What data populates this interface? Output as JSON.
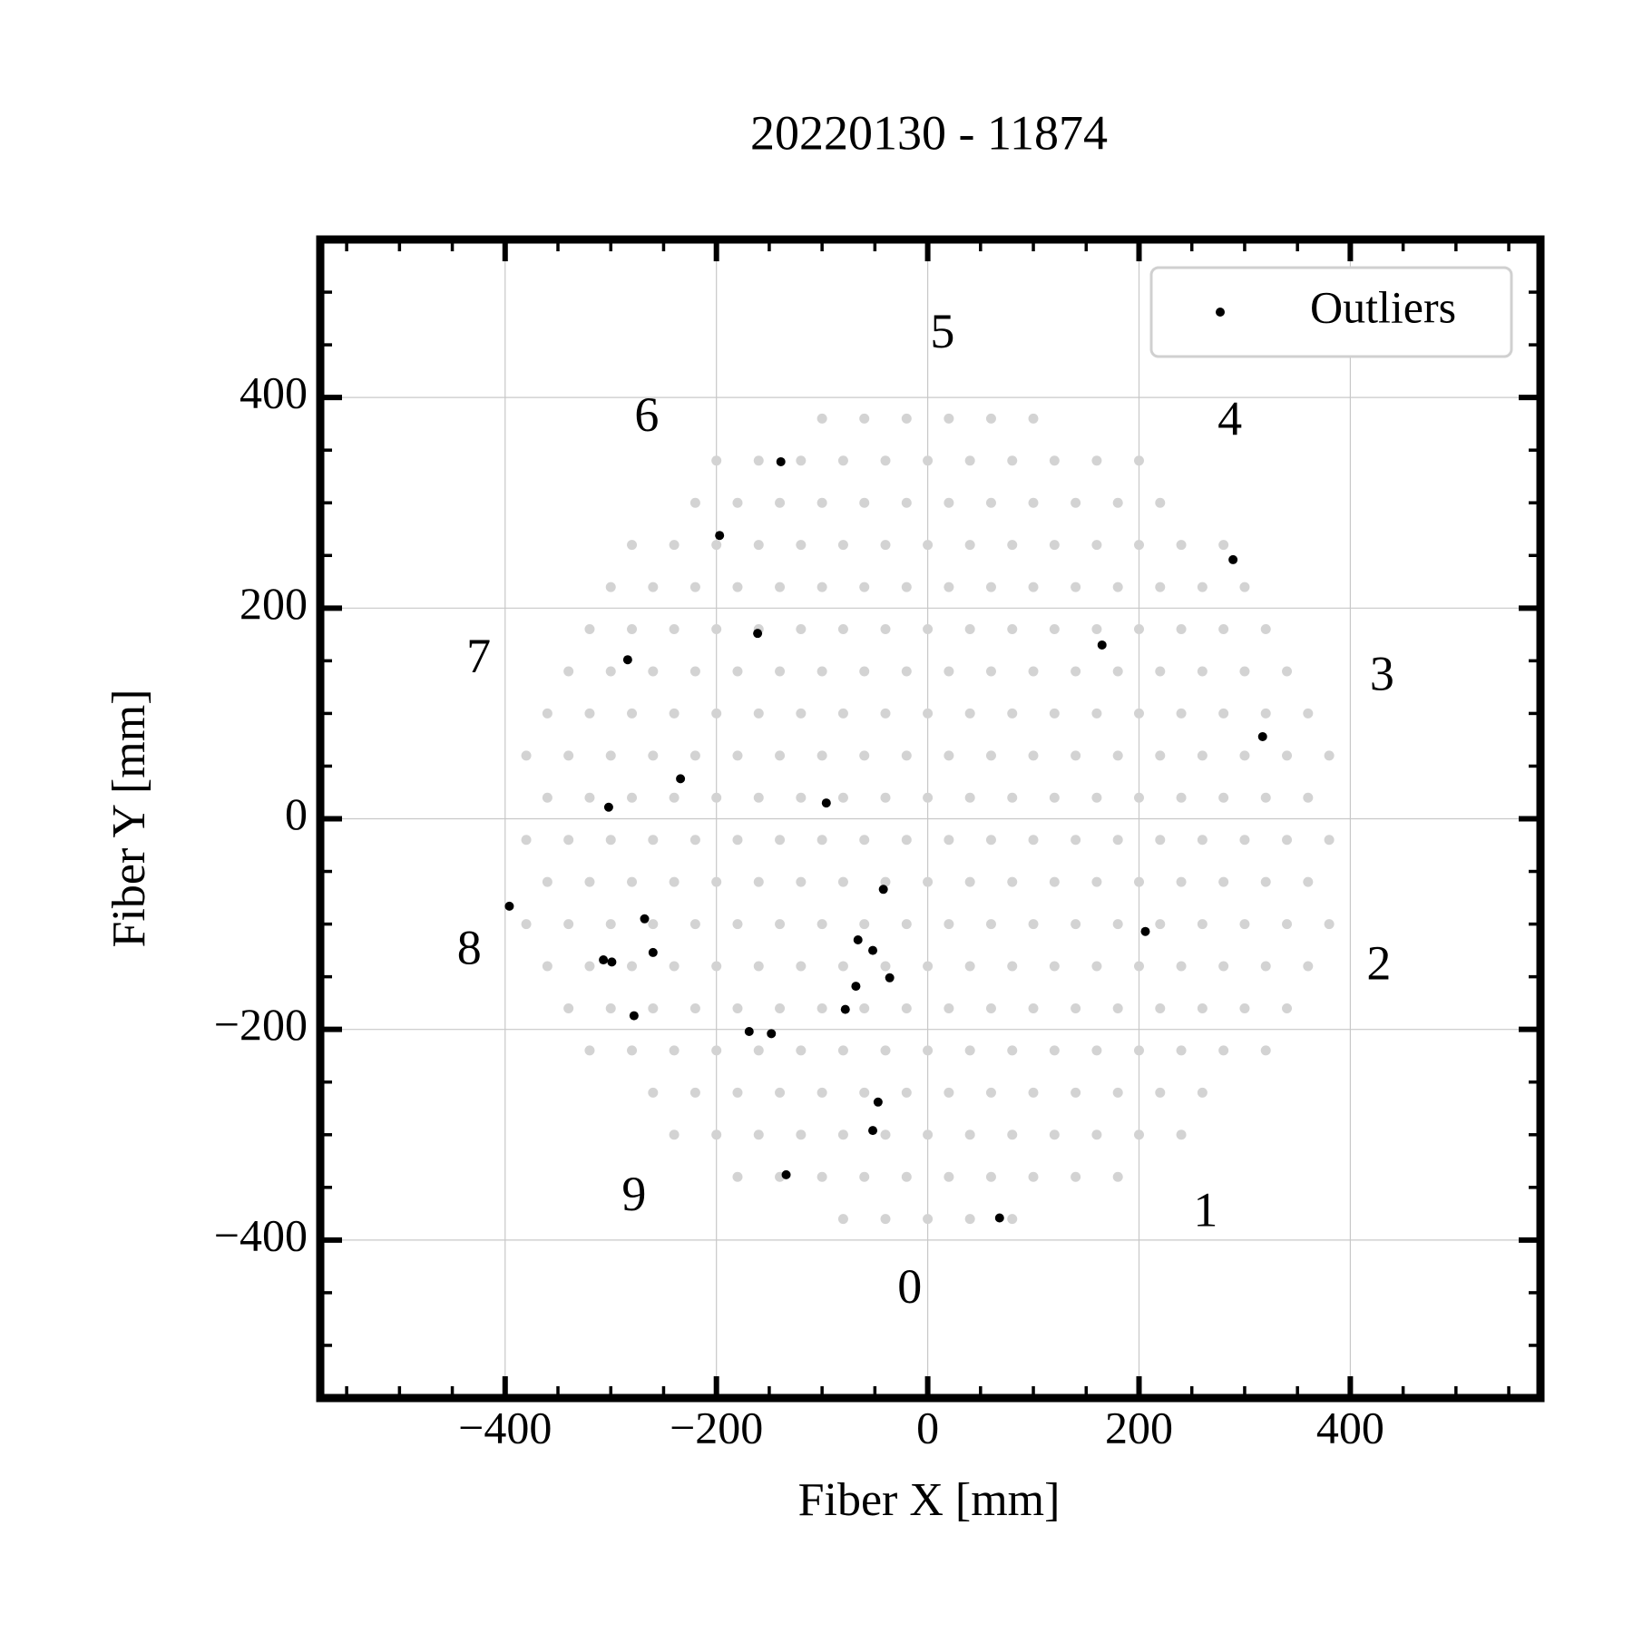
{
  "chart_data": {
    "type": "scatter",
    "title": "20220130 - 11874",
    "x_label": "Fiber X [mm]",
    "y_label": "Fiber Y [mm]",
    "xlim": [
      -575,
      580
    ],
    "ylim": [
      -550,
      550
    ],
    "xticks": [
      {
        "value": -400,
        "label": "−400"
      },
      {
        "value": -200,
        "label": "−200"
      },
      0,
      200,
      400
    ],
    "yticks": [
      {
        "value": -400,
        "label": "−400"
      },
      {
        "value": -200,
        "label": "−200"
      },
      0,
      200,
      400
    ],
    "xminorticks": [
      -550,
      -500,
      -450,
      -350,
      -300,
      -250,
      -150,
      -100,
      -50,
      50,
      100,
      150,
      250,
      300,
      350,
      450,
      500,
      550
    ],
    "yminorticks": [
      -500,
      -450,
      -350,
      -300,
      -250,
      -150,
      -100,
      -50,
      50,
      100,
      150,
      250,
      300,
      350,
      450,
      500
    ],
    "grid": true,
    "legend": "upper right",
    "series": [
      {
        "color": "#d3d3d3",
        "x": [
          -80,
          -40,
          0,
          40,
          80,
          -180,
          -140,
          -100,
          -60,
          -20,
          20,
          60,
          100,
          140,
          180,
          -240,
          -200,
          -160,
          -120,
          -80,
          -40,
          0,
          40,
          80,
          120,
          160,
          200,
          240,
          -260,
          -220,
          -180,
          -140,
          -100,
          -60,
          -20,
          20,
          60,
          100,
          140,
          180,
          220,
          260,
          -320,
          -280,
          -240,
          -200,
          -160,
          -120,
          -80,
          -40,
          0,
          40,
          80,
          120,
          160,
          200,
          240,
          280,
          320,
          -340,
          -300,
          -260,
          -220,
          -180,
          -140,
          -100,
          -60,
          -20,
          20,
          60,
          100,
          140,
          180,
          220,
          260,
          300,
          340,
          -360,
          -320,
          -280,
          -240,
          -200,
          -160,
          -120,
          -80,
          -40,
          0,
          40,
          80,
          120,
          160,
          200,
          240,
          280,
          320,
          360,
          -380,
          -340,
          -300,
          -260,
          -220,
          -180,
          -140,
          -100,
          -60,
          -20,
          20,
          60,
          100,
          140,
          180,
          220,
          260,
          300,
          340,
          380,
          -360,
          -320,
          -280,
          -240,
          -200,
          -160,
          -120,
          -80,
          -40,
          0,
          40,
          80,
          120,
          160,
          200,
          240,
          280,
          320,
          360,
          -380,
          -340,
          -300,
          -260,
          -220,
          -180,
          -140,
          -100,
          -60,
          -20,
          20,
          60,
          100,
          140,
          180,
          220,
          260,
          300,
          340,
          380,
          -360,
          -320,
          -280,
          -240,
          -200,
          -160,
          -120,
          -80,
          -40,
          0,
          40,
          80,
          120,
          160,
          200,
          240,
          280,
          320,
          360,
          -380,
          -340,
          -300,
          -260,
          -220,
          -180,
          -140,
          -100,
          -60,
          -20,
          20,
          60,
          100,
          140,
          180,
          220,
          260,
          300,
          340,
          380,
          -360,
          -320,
          -280,
          -240,
          -200,
          -160,
          -120,
          -80,
          -40,
          0,
          40,
          80,
          120,
          160,
          200,
          240,
          280,
          320,
          360,
          -340,
          -300,
          -260,
          -220,
          -180,
          -140,
          -100,
          -60,
          -20,
          20,
          60,
          100,
          140,
          180,
          220,
          260,
          300,
          340,
          -320,
          -280,
          -240,
          -200,
          -160,
          -120,
          -80,
          -40,
          0,
          40,
          80,
          120,
          160,
          200,
          240,
          280,
          320,
          -300,
          -260,
          -220,
          -180,
          -140,
          -100,
          -60,
          -20,
          20,
          60,
          100,
          140,
          180,
          220,
          260,
          300,
          -280,
          -240,
          -200,
          -160,
          -120,
          -80,
          -40,
          0,
          40,
          80,
          120,
          160,
          200,
          240,
          280,
          -220,
          -180,
          -140,
          -100,
          -60,
          -20,
          20,
          60,
          100,
          140,
          180,
          220,
          -200,
          -160,
          -120,
          -80,
          -40,
          0,
          40,
          80,
          120,
          160,
          200,
          -100,
          -60,
          -20,
          20,
          60,
          100
        ],
        "values": [
          -380,
          -380,
          -380,
          -380,
          -380,
          -340,
          -340,
          -340,
          -340,
          -340,
          -340,
          -340,
          -340,
          -340,
          -340,
          -300,
          -300,
          -300,
          -300,
          -300,
          -300,
          -300,
          -300,
          -300,
          -300,
          -300,
          -300,
          -300,
          -260,
          -260,
          -260,
          -260,
          -260,
          -260,
          -260,
          -260,
          -260,
          -260,
          -260,
          -260,
          -260,
          -260,
          -220,
          -220,
          -220,
          -220,
          -220,
          -220,
          -220,
          -220,
          -220,
          -220,
          -220,
          -220,
          -220,
          -220,
          -220,
          -220,
          -220,
          -180,
          -180,
          -180,
          -180,
          -180,
          -180,
          -180,
          -180,
          -180,
          -180,
          -180,
          -180,
          -180,
          -180,
          -180,
          -180,
          -180,
          -180,
          -140,
          -140,
          -140,
          -140,
          -140,
          -140,
          -140,
          -140,
          -140,
          -140,
          -140,
          -140,
          -140,
          -140,
          -140,
          -140,
          -140,
          -140,
          -140,
          -100,
          -100,
          -100,
          -100,
          -100,
          -100,
          -100,
          -100,
          -100,
          -100,
          -100,
          -100,
          -100,
          -100,
          -100,
          -100,
          -100,
          -100,
          -100,
          -100,
          -60,
          -60,
          -60,
          -60,
          -60,
          -60,
          -60,
          -60,
          -60,
          -60,
          -60,
          -60,
          -60,
          -60,
          -60,
          -60,
          -60,
          -60,
          -60,
          -20,
          -20,
          -20,
          -20,
          -20,
          -20,
          -20,
          -20,
          -20,
          -20,
          -20,
          -20,
          -20,
          -20,
          -20,
          -20,
          -20,
          -20,
          -20,
          -20,
          20,
          20,
          20,
          20,
          20,
          20,
          20,
          20,
          20,
          20,
          20,
          20,
          20,
          20,
          20,
          20,
          20,
          20,
          20,
          60,
          60,
          60,
          60,
          60,
          60,
          60,
          60,
          60,
          60,
          60,
          60,
          60,
          60,
          60,
          60,
          60,
          60,
          60,
          60,
          100,
          100,
          100,
          100,
          100,
          100,
          100,
          100,
          100,
          100,
          100,
          100,
          100,
          100,
          100,
          100,
          100,
          100,
          100,
          140,
          140,
          140,
          140,
          140,
          140,
          140,
          140,
          140,
          140,
          140,
          140,
          140,
          140,
          140,
          140,
          140,
          140,
          180,
          180,
          180,
          180,
          180,
          180,
          180,
          180,
          180,
          180,
          180,
          180,
          180,
          180,
          180,
          180,
          180,
          220,
          220,
          220,
          220,
          220,
          220,
          220,
          220,
          220,
          220,
          220,
          220,
          220,
          220,
          220,
          220,
          260,
          260,
          260,
          260,
          260,
          260,
          260,
          260,
          260,
          260,
          260,
          260,
          260,
          260,
          260,
          300,
          300,
          300,
          300,
          300,
          300,
          300,
          300,
          300,
          300,
          300,
          300,
          340,
          340,
          340,
          340,
          340,
          340,
          340,
          340,
          340,
          340,
          340,
          380,
          380,
          380,
          380,
          380,
          380
        ]
      },
      {
        "name": "Outliers",
        "color": "#000000",
        "x": [
          -139,
          -197,
          -161,
          -284,
          289,
          165,
          317,
          -234,
          -302,
          -96,
          -396,
          -268,
          -307,
          -299,
          -260,
          -278,
          -42,
          -66,
          -52,
          -36,
          -68,
          -78,
          -169,
          -148,
          206,
          -47,
          -52,
          -134,
          68
        ],
        "values": [
          339,
          269,
          176,
          151,
          246,
          165,
          78,
          38,
          11,
          15,
          -83,
          -95,
          -134,
          -136,
          -127,
          -187,
          -67,
          -115,
          -125,
          -151,
          -159,
          -181,
          -202,
          -204,
          -107,
          -269,
          -296,
          -338,
          -379
        ]
      }
    ],
    "annotations": [
      {
        "text": "0",
        "x": -17,
        "y": -449
      },
      {
        "text": "1",
        "x": 263,
        "y": -376
      },
      {
        "text": "2",
        "x": 427,
        "y": -142
      },
      {
        "text": "3",
        "x": 430,
        "y": 133
      },
      {
        "text": "4",
        "x": 286,
        "y": 375
      },
      {
        "text": "5",
        "x": 14,
        "y": 458
      },
      {
        "text": "6",
        "x": -266,
        "y": 379
      },
      {
        "text": "7",
        "x": -425,
        "y": 150
      },
      {
        "text": "8",
        "x": -434,
        "y": -127
      },
      {
        "text": "9",
        "x": -278,
        "y": -361
      }
    ]
  }
}
